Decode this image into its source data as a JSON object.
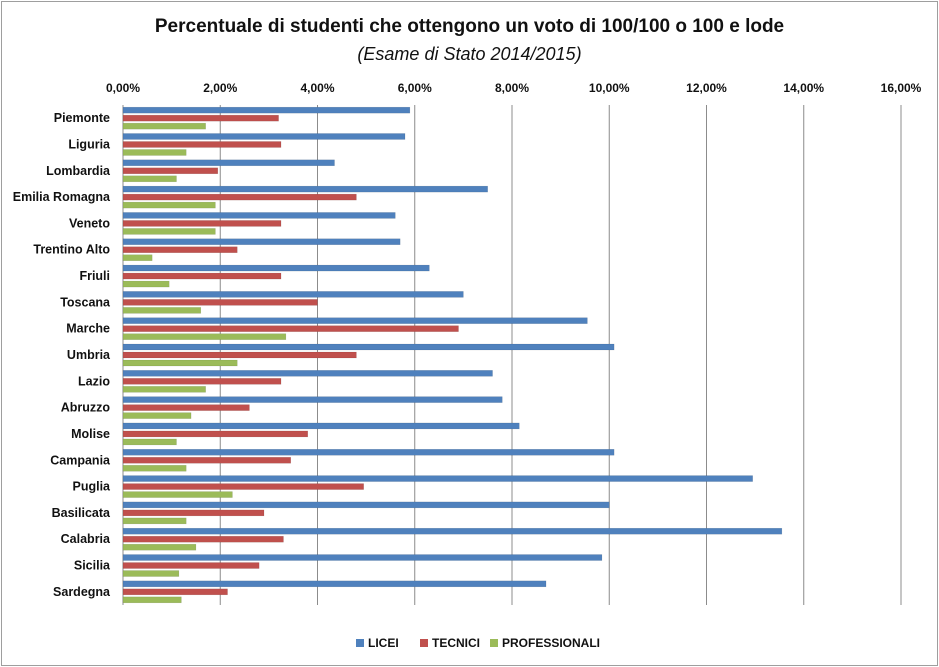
{
  "chart_data": {
    "type": "bar",
    "orientation": "horizontal",
    "title": "Percentuale di studenti che ottengono un voto di 100/100 o 100 e lode",
    "subtitle": "(Esame di Stato 2014/2015)",
    "xlim": [
      0,
      16
    ],
    "x_ticks": [
      0,
      2,
      4,
      6,
      8,
      10,
      12,
      14,
      16
    ],
    "x_tick_labels": [
      "0,00%",
      "2,00%",
      "4,00%",
      "6,00%",
      "8,00%",
      "10,00%",
      "12,00%",
      "14,00%",
      "16,00%"
    ],
    "x_axis_position": "top",
    "grid": true,
    "legend_position": "bottom",
    "categories": [
      "Piemonte",
      "Liguria",
      "Lombardia",
      "Emilia Romagna",
      "Veneto",
      "Trentino Alto",
      "Friuli",
      "Toscana",
      "Marche",
      "Umbria",
      "Lazio",
      "Abruzzo",
      "Molise",
      "Campania",
      "Puglia",
      "Basilicata",
      "Calabria",
      "Sicilia",
      "Sardegna"
    ],
    "series": [
      {
        "name": "LICEI",
        "color": "#4f81bd",
        "values": [
          5.9,
          5.8,
          4.35,
          7.5,
          5.6,
          5.7,
          6.3,
          7.0,
          9.55,
          10.1,
          7.6,
          7.8,
          8.15,
          10.1,
          12.95,
          10.0,
          13.55,
          9.85,
          8.7
        ]
      },
      {
        "name": "TECNICI",
        "color": "#c0504d",
        "values": [
          3.2,
          3.25,
          1.95,
          4.8,
          3.25,
          2.35,
          3.25,
          4.0,
          6.9,
          4.8,
          3.25,
          2.6,
          3.8,
          3.45,
          4.95,
          2.9,
          3.3,
          2.8,
          2.15
        ]
      },
      {
        "name": "PROFESSIONALI",
        "color": "#9bbb59",
        "values": [
          1.7,
          1.3,
          1.1,
          1.9,
          1.9,
          0.6,
          0.95,
          1.6,
          3.35,
          2.35,
          1.7,
          1.4,
          1.1,
          1.3,
          2.25,
          1.3,
          1.5,
          1.15,
          1.2
        ]
      }
    ]
  }
}
